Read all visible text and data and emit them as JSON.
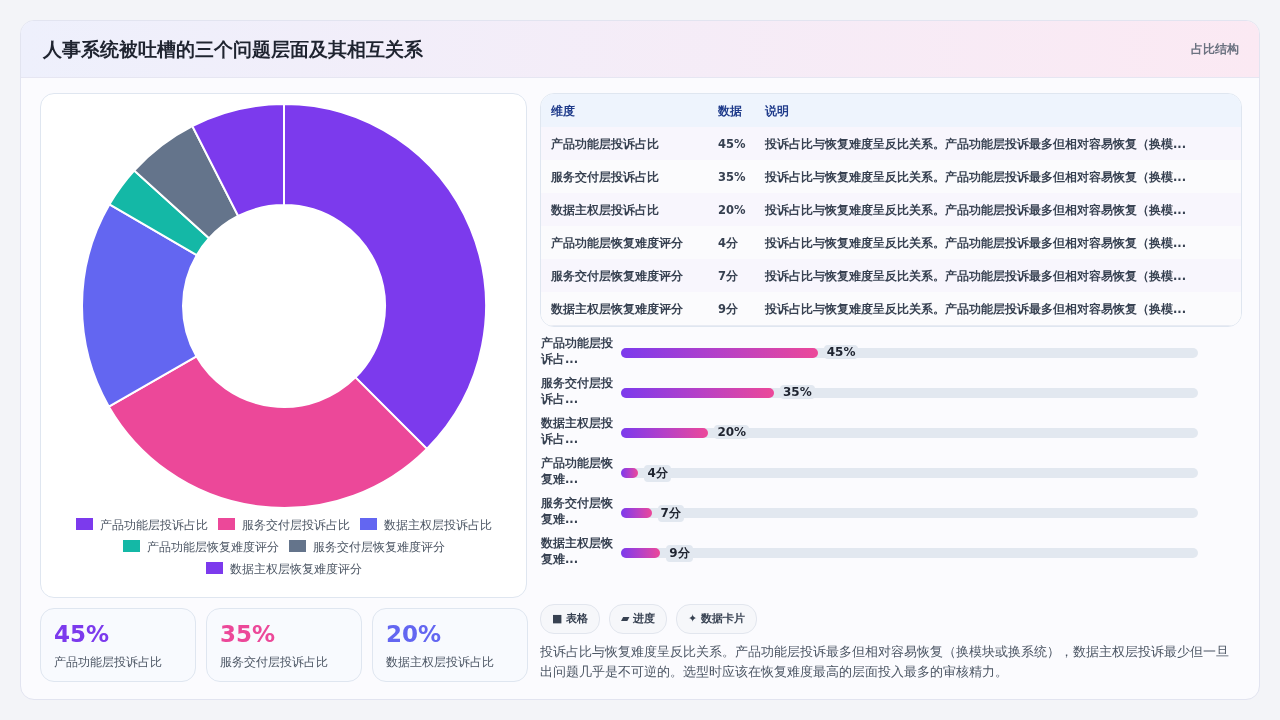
{
  "chart_data": [
    {
      "type": "other",
      "title": "人事系统被吐槽的三个问题层面及其相互关系",
      "subtitle": "占比结构"
    },
    {
      "type": "donut",
      "categories": [
        "产品功能层投诉占比",
        "服务交付层投诉占比",
        "数据主权层投诉占比",
        "产品功能层恢复难度评分",
        "服务交付层恢复难度评分",
        "数据主权层恢复难度评分"
      ],
      "values": [
        37.5,
        29.2,
        16.7,
        3.3,
        5.8,
        7.5
      ],
      "colors": [
        "#7c3aed",
        "#ec4899",
        "#6366f1",
        "#14b8a6",
        "#64748b",
        "#7c3aed"
      ],
      "legend": "bottom"
    },
    {
      "type": "other",
      "annotations": [
        "维度",
        "数据",
        "说明",
        "产品功能层投诉占比",
        "45%",
        "投诉占比与恢复难度呈反比关系。产品功能层投诉最多但相对容易恢复（换模...",
        "服务交付层投诉占比",
        "35%",
        "投诉占比与恢复难度呈反比关系。产品功能层投诉最多但相对容易恢复（换模...",
        "数据主权层投诉占比",
        "20%",
        "投诉占比与恢复难度呈反比关系。产品功能层投诉最多但相对容易恢复（换模...",
        "产品功能层恢复难度评分",
        "4分",
        "投诉占比与恢复难度呈反比关系。产品功能层投诉最多但相对容易恢复（换模...",
        "服务交付层恢复难度评分",
        "7分",
        "投诉占比与恢复难度呈反比关系。产品功能层投诉最多但相对容易恢复（换模...",
        "数据主权层恢复难度评分",
        "9分",
        "投诉占比与恢复难度呈反比关系。产品功能层投诉最多但相对容易恢复（换模..."
      ]
    },
    {
      "type": "bar",
      "orientation": "horizontal",
      "categories": [
        "产品功能层投诉占...",
        "服务交付层投诉占...",
        "数据主权层投诉占...",
        "产品功能层恢复难...",
        "服务交付层恢复难...",
        "数据主权层恢复难..."
      ],
      "values": [
        45,
        35,
        20,
        4,
        7,
        9
      ],
      "value_labels": [
        "45%",
        "35%",
        "20%",
        "4分",
        "7分",
        "9分"
      ],
      "color": "#b540c8",
      "xlim": [
        0,
        132
      ],
      "tick_labels": "y"
    },
    {
      "type": "other",
      "annotations": [
        "45%",
        "产品功能层投诉占比",
        "35%",
        "服务交付层投诉占比",
        "20%",
        "数据主权层投诉占比"
      ],
      "colors": [
        "#7c3aed",
        "#ec4899",
        "#6366f1"
      ]
    },
    {
      "type": "other",
      "annotations": [
        "■ 表格",
        "▰ 进度",
        "✦ 数据卡片",
        "投诉占比与恢复难度呈反比关系。产品功能层投诉最多但相对容易恢复（换模块或换系统），数据主权层投诉最少但一旦出问题几乎是不可逆的。选型时应该在恢复难度最高的层面投入最多的审核精力。"
      ]
    }
  ]
}
